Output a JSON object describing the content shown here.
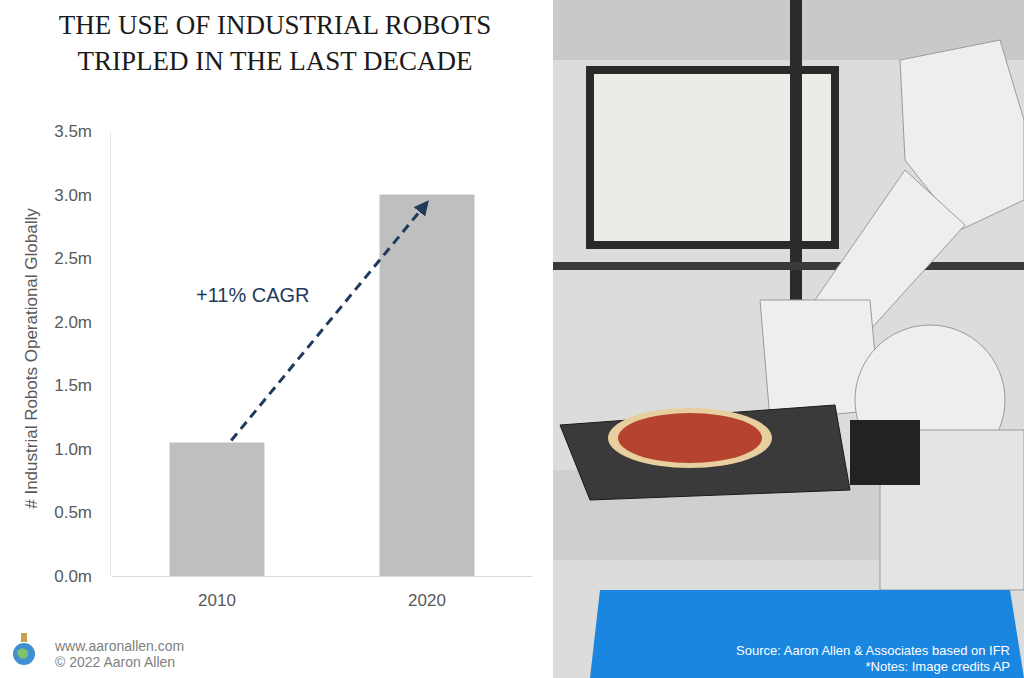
{
  "chart_data": {
    "type": "bar",
    "title": [
      "THE USE OF INDUSTRIAL ROBOTS",
      "TRIPLED IN THE LAST DECADE"
    ],
    "y_label": "# Industrial Robots Operational Globally",
    "categories": [
      "2010",
      "2020"
    ],
    "values": [
      1.05,
      3.0
    ],
    "color": "#bfbfbf",
    "ylim": [
      0,
      3.5
    ],
    "yticks": [
      {
        "value": 0,
        "label": "0.0m"
      },
      {
        "value": 0.5,
        "label": "0.5m"
      },
      {
        "value": 1,
        "label": "1.0m"
      },
      {
        "value": 1.5,
        "label": "1.5m"
      },
      {
        "value": 2,
        "label": "2.0m"
      },
      {
        "value": 2.5,
        "label": "2.5m"
      },
      {
        "value": 3,
        "label": "3.0m"
      },
      {
        "value": 3.5,
        "label": "3.5m"
      }
    ],
    "grid": false,
    "annotation": "+11% CAGR",
    "footer": [
      "www.aaronallen.com",
      "© 2022 Aaron Allen"
    ],
    "source": "Source: Aaron Allen & Associates based on IFR",
    "notes": "*Notes: Image credits AP"
  }
}
